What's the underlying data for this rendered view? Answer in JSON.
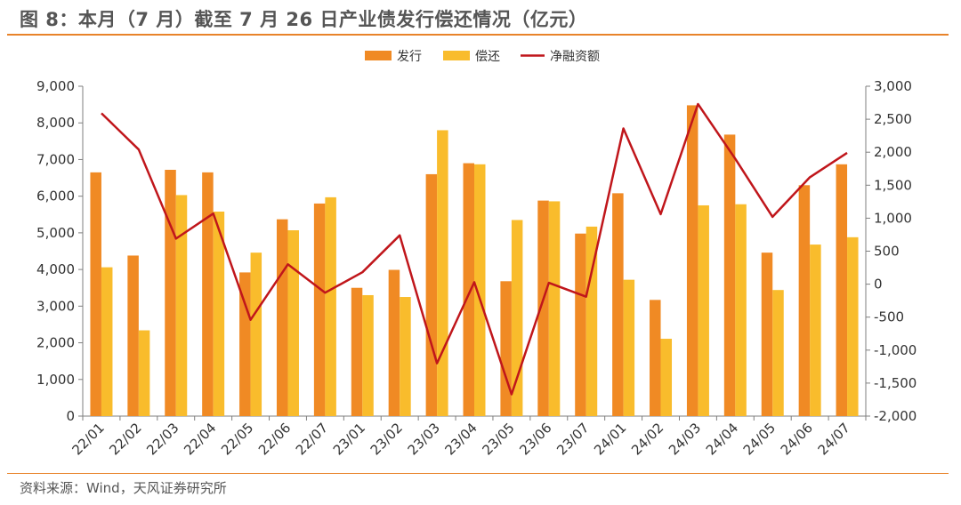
{
  "title": "图 8：本月（7 月）截至 7 月 26 日产业债发行偿还情况（亿元）",
  "source": "资料来源：Wind，天风证券研究所",
  "colors": {
    "issuance": "#F08A24",
    "repayment": "#F9BC2C",
    "net": "#C0161B",
    "accent": "#E8832A"
  },
  "chart_data": {
    "type": "bar",
    "categories": [
      "22/01",
      "22/02",
      "22/03",
      "22/04",
      "22/05",
      "22/06",
      "22/07",
      "23/01",
      "23/02",
      "23/03",
      "23/04",
      "23/05",
      "23/06",
      "23/07",
      "24/01",
      "24/02",
      "24/03",
      "24/04",
      "24/05",
      "24/06",
      "24/07"
    ],
    "series": [
      {
        "name": "发行",
        "type": "bar",
        "axis": "left",
        "values": [
          6650,
          4380,
          6720,
          6650,
          3920,
          5370,
          5800,
          3500,
          3990,
          6600,
          6900,
          3680,
          5880,
          4980,
          6080,
          3170,
          8480,
          7680,
          4460,
          6300,
          6870
        ]
      },
      {
        "name": "偿还",
        "type": "bar",
        "axis": "left",
        "values": [
          4060,
          2340,
          6030,
          5580,
          4460,
          5070,
          5970,
          3300,
          3250,
          7800,
          6870,
          5350,
          5860,
          5170,
          3720,
          2110,
          5750,
          5780,
          3440,
          4680,
          4880
        ]
      },
      {
        "name": "净融资额",
        "type": "line",
        "axis": "right",
        "values": [
          2590,
          2040,
          690,
          1070,
          -540,
          300,
          -130,
          180,
          740,
          -1200,
          30,
          -1670,
          20,
          -190,
          2360,
          1060,
          2730,
          1900,
          1020,
          1620,
          1990
        ]
      }
    ],
    "left_axis": {
      "min": 0,
      "max": 9000,
      "ticks": [
        "0",
        "1,000",
        "2,000",
        "3,000",
        "4,000",
        "5,000",
        "6,000",
        "7,000",
        "8,000",
        "9,000"
      ]
    },
    "right_axis": {
      "min": -2000,
      "max": 3000,
      "ticks": [
        "-2,000",
        "-1,500",
        "-1,000",
        "-500",
        "0",
        "500",
        "1,000",
        "1,500",
        "2,000",
        "2,500",
        "3,000"
      ]
    },
    "legend": {
      "placement": "top-center"
    },
    "grid": false
  }
}
